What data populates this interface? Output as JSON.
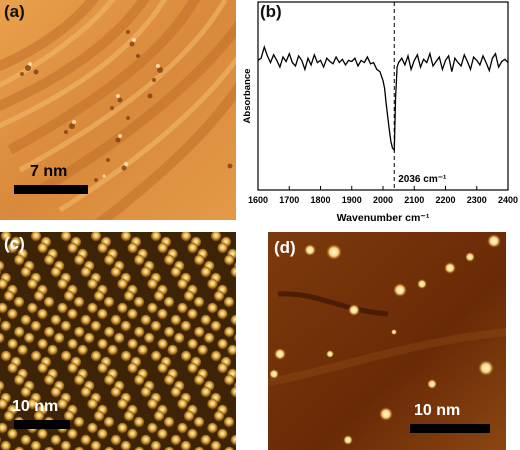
{
  "panels": {
    "a": {
      "label": "(a)",
      "scale_label": "7 nm"
    },
    "b": {
      "label": "(b)"
    },
    "c": {
      "label": "(c)",
      "scale_label": "10 nm"
    },
    "d": {
      "label": "(d)",
      "scale_label": "10 nm"
    }
  },
  "chart_data": {
    "type": "line",
    "xlabel": "Wavenumber cm⁻¹",
    "ylabel": "Absorbance",
    "xlim": [
      1600,
      2400
    ],
    "xticks": [
      1600,
      1700,
      1800,
      1900,
      2000,
      2100,
      2200,
      2300,
      2400
    ],
    "peak_annotation": "2036 cm⁻¹",
    "peak_x": 2036,
    "grid": false,
    "series": [
      {
        "x": [
          1600,
          1610,
          1620,
          1630,
          1640,
          1650,
          1660,
          1670,
          1680,
          1690,
          1700,
          1710,
          1720,
          1730,
          1740,
          1750,
          1760,
          1770,
          1780,
          1790,
          1800,
          1810,
          1820,
          1830,
          1840,
          1850,
          1860,
          1870,
          1880,
          1890,
          1900,
          1910,
          1920,
          1930,
          1940,
          1950,
          1960,
          1970,
          1980,
          1990,
          2000,
          2005,
          2010,
          2015,
          2020,
          2025,
          2030,
          2036,
          2040,
          2045,
          2050,
          2060,
          2070,
          2080,
          2090,
          2100,
          2110,
          2120,
          2130,
          2140,
          2150,
          2160,
          2170,
          2180,
          2190,
          2200,
          2210,
          2220,
          2230,
          2240,
          2250,
          2260,
          2270,
          2280,
          2290,
          2300,
          2310,
          2320,
          2330,
          2340,
          2350,
          2360,
          2370,
          2380,
          2390,
          2400
        ],
        "y": [
          0.8,
          0.82,
          0.92,
          0.84,
          0.78,
          0.85,
          0.8,
          0.74,
          0.83,
          0.79,
          0.86,
          0.78,
          0.75,
          0.84,
          0.8,
          0.72,
          0.82,
          0.76,
          0.85,
          0.78,
          0.8,
          0.74,
          0.82,
          0.79,
          0.77,
          0.83,
          0.78,
          0.81,
          0.76,
          0.8,
          0.79,
          0.82,
          0.75,
          0.8,
          0.78,
          0.83,
          0.77,
          0.78,
          0.72,
          0.7,
          0.62,
          0.55,
          0.42,
          0.3,
          0.18,
          0.08,
          0.02,
          0.0,
          0.45,
          0.74,
          0.78,
          0.82,
          0.76,
          0.84,
          0.72,
          0.8,
          0.85,
          0.74,
          0.81,
          0.78,
          0.86,
          0.75,
          0.79,
          0.83,
          0.72,
          0.8,
          0.84,
          0.7,
          0.82,
          0.78,
          0.75,
          0.85,
          0.79,
          0.72,
          0.83,
          0.8,
          0.76,
          0.84,
          0.78,
          0.71,
          0.82,
          0.86,
          0.74,
          0.79,
          0.81,
          0.78
        ]
      }
    ]
  }
}
